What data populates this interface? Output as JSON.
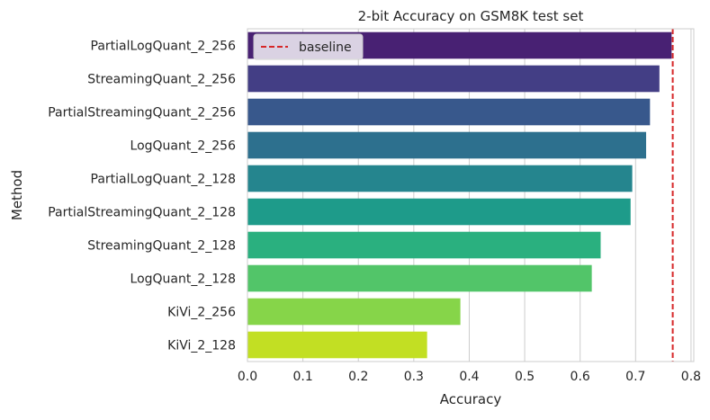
{
  "chart_data": {
    "type": "bar",
    "orientation": "horizontal",
    "title": "2-bit Accuracy on GSM8K test set",
    "xlabel": "Accuracy",
    "ylabel": "Method",
    "xlim": [
      0.0,
      0.805
    ],
    "xticks": [
      "0.0",
      "0.1",
      "0.2",
      "0.3",
      "0.4",
      "0.5",
      "0.6",
      "0.7",
      "0.8"
    ],
    "grid": "x-axis vertical lines",
    "categories": [
      "PartialLogQuant_2_256",
      "StreamingQuant_2_256",
      "PartialStreamingQuant_2_256",
      "LogQuant_2_256",
      "PartialLogQuant_2_128",
      "PartialStreamingQuant_2_128",
      "StreamingQuant_2_128",
      "LogQuant_2_128",
      "KiVi_2_256",
      "KiVi_2_128"
    ],
    "values": [
      0.765,
      0.743,
      0.726,
      0.719,
      0.694,
      0.691,
      0.637,
      0.621,
      0.384,
      0.324
    ],
    "colors": [
      "#482173",
      "#433e85",
      "#38588c",
      "#2d708e",
      "#25858e",
      "#1e9b8a",
      "#2ab07f",
      "#52c569",
      "#86d549",
      "#c2df23"
    ],
    "baseline": {
      "label": "baseline",
      "value": 0.767,
      "color": "#d62728"
    },
    "legend": "top-left"
  }
}
